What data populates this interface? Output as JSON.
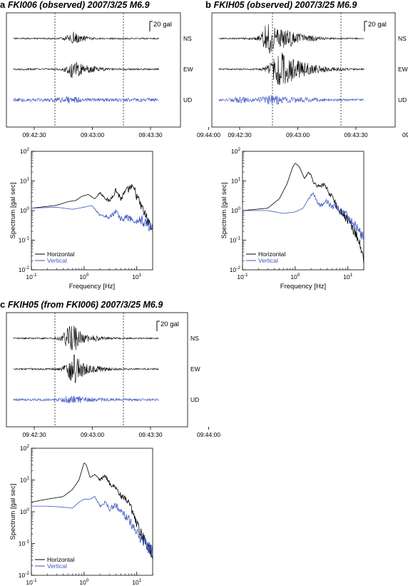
{
  "colors": {
    "horizontal": "#000000",
    "vertical": "#3a55c2",
    "frame": "#000000"
  },
  "panels": [
    {
      "letter": "a",
      "title": "FKI006 (observed) 2007/3/25 M6.9"
    },
    {
      "letter": "b",
      "title": "FKIH05 (observed) 2007/3/25 M6.9"
    },
    {
      "letter": "c",
      "title": "FKIH05 (from FKI006) 2007/3/25 M6.9"
    }
  ],
  "seismograms": {
    "scale_label": "20 gal",
    "channels": [
      "NS",
      "EW",
      "UD"
    ],
    "time_ticks": [
      "09:42:30",
      "09:43:00",
      "09:43:30",
      "09:44:00"
    ]
  },
  "spectra": {
    "ylabel": "Spectrum [gal sec]",
    "xlabel": "Frequency [Hz]",
    "x_ticks": [
      "10-1",
      "100",
      "101"
    ],
    "y_ticks": [
      "10-2",
      "10-1",
      "100",
      "101",
      "102"
    ],
    "legend": [
      "Horizontal",
      "Vertical"
    ]
  },
  "chart_data": [
    {
      "type": "line",
      "panel": "a",
      "title": "FKI006 (observed) 2007/3/25 M6.9",
      "xlabel": "Frequency [Hz]",
      "ylabel": "Spectrum [gal sec]",
      "xscale": "log",
      "yscale": "log",
      "xlim": [
        0.1,
        20
      ],
      "ylim": [
        0.01,
        100
      ],
      "legend_position": "bottom-left",
      "series": [
        {
          "name": "Horizontal",
          "color": "#000000",
          "x": [
            0.1,
            0.3,
            0.5,
            0.7,
            0.9,
            1.2,
            1.6,
            2.0,
            3.0,
            4.0,
            5.0,
            6.0,
            7.5,
            9.0,
            11.0,
            14.0,
            20.0
          ],
          "y": [
            1.2,
            1.5,
            2.0,
            2.2,
            3.0,
            3.5,
            2.5,
            4.0,
            2.0,
            5.0,
            2.5,
            4.0,
            6.0,
            5.0,
            2.0,
            0.8,
            0.2
          ]
        },
        {
          "name": "Vertical",
          "color": "#3a55c2",
          "x": [
            0.1,
            0.3,
            0.6,
            1.0,
            1.4,
            2.0,
            3.0,
            4.0,
            5.0,
            7.0,
            9.0,
            12.0,
            16.0,
            20.0
          ],
          "y": [
            1.2,
            1.3,
            1.1,
            1.3,
            1.5,
            0.7,
            0.6,
            0.9,
            0.5,
            0.6,
            0.4,
            0.5,
            0.3,
            0.3
          ]
        }
      ]
    },
    {
      "type": "line",
      "panel": "b",
      "title": "FKIH05 (observed) 2007/3/25 M6.9",
      "xlabel": "Frequency [Hz]",
      "ylabel": "Spectrum [gal sec]",
      "xscale": "log",
      "yscale": "log",
      "xlim": [
        0.1,
        20
      ],
      "ylim": [
        0.01,
        100
      ],
      "legend_position": "bottom-left",
      "series": [
        {
          "name": "Horizontal",
          "color": "#000000",
          "x": [
            0.1,
            0.3,
            0.5,
            0.7,
            0.9,
            1.0,
            1.2,
            1.5,
            1.8,
            2.0,
            2.3,
            3.0,
            3.5,
            4.0,
            5.0,
            6.0,
            7.0,
            9.0,
            12.0,
            16.0,
            20.0
          ],
          "y": [
            1.0,
            1.2,
            2.5,
            8.0,
            30.0,
            40.0,
            30.0,
            12.0,
            20.0,
            15.0,
            8.0,
            6.0,
            8.0,
            5.0,
            3.0,
            1.5,
            1.0,
            0.6,
            0.3,
            0.1,
            0.02
          ]
        },
        {
          "name": "Vertical",
          "color": "#3a55c2",
          "x": [
            0.1,
            0.3,
            0.6,
            1.0,
            1.4,
            1.8,
            2.2,
            2.6,
            3.0,
            4.0,
            5.0,
            6.0,
            7.0,
            9.0,
            12.0,
            16.0,
            20.0
          ],
          "y": [
            1.0,
            1.0,
            0.8,
            0.9,
            1.2,
            2.5,
            4.0,
            2.0,
            1.5,
            2.0,
            1.2,
            1.5,
            0.9,
            0.7,
            0.4,
            0.2,
            0.15
          ]
        }
      ]
    },
    {
      "type": "line",
      "panel": "c",
      "title": "FKIH05 (from FKI006) 2007/3/25 M6.9",
      "xlabel": "Frequency [Hz]",
      "ylabel": "Spectrum [gal sec]",
      "xscale": "log",
      "yscale": "log",
      "xlim": [
        0.1,
        20
      ],
      "ylim": [
        0.01,
        100
      ],
      "legend_position": "bottom-left",
      "series": [
        {
          "name": "Horizontal",
          "color": "#000000",
          "x": [
            0.1,
            0.2,
            0.4,
            0.6,
            0.8,
            1.0,
            1.1,
            1.3,
            1.6,
            2.0,
            2.5,
            3.0,
            4.0,
            5.0,
            7.0,
            9.0,
            12.0,
            16.0,
            20.0
          ],
          "y": [
            2.0,
            2.5,
            3.0,
            5.0,
            10.0,
            35.0,
            30.0,
            12.0,
            15.0,
            10.0,
            14.0,
            8.0,
            6.0,
            3.0,
            2.0,
            0.6,
            0.2,
            0.08,
            0.05
          ]
        },
        {
          "name": "Vertical",
          "color": "#3a55c2",
          "x": [
            0.1,
            0.2,
            0.4,
            0.6,
            0.8,
            1.0,
            1.3,
            1.6,
            2.0,
            2.5,
            3.0,
            4.0,
            5.0,
            7.0,
            9.0,
            12.0,
            16.0,
            20.0
          ],
          "y": [
            1.5,
            1.5,
            1.4,
            1.3,
            2.0,
            2.5,
            2.5,
            3.0,
            1.5,
            2.0,
            1.2,
            1.6,
            1.0,
            0.6,
            0.3,
            0.15,
            0.08,
            0.06
          ]
        }
      ]
    }
  ]
}
